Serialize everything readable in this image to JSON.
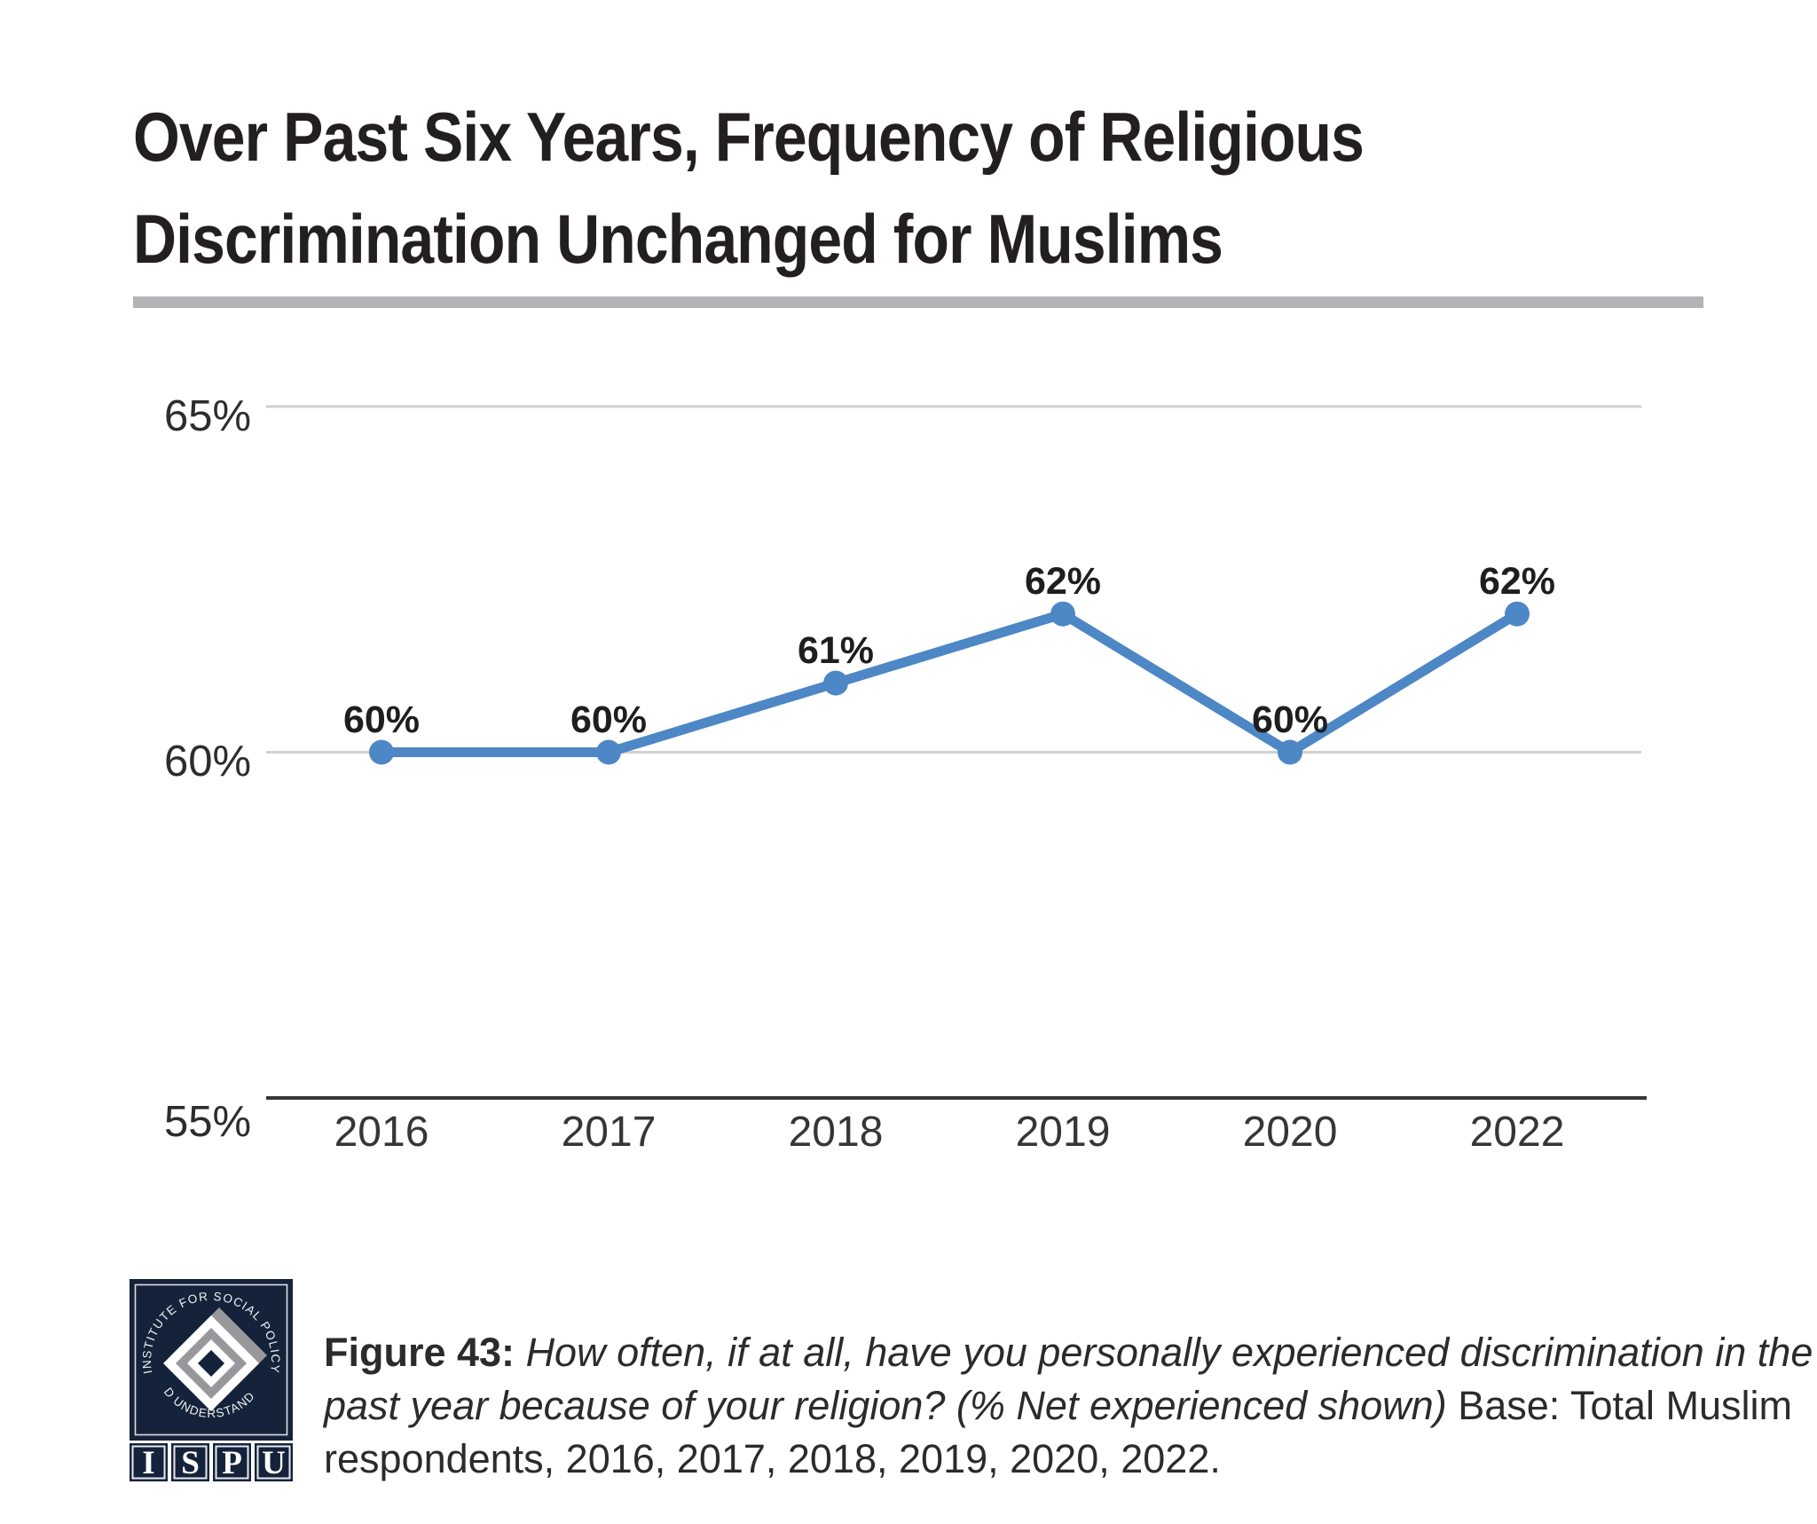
{
  "title": {
    "line1": "Over Past Six Years, Frequency of Religious",
    "line2": "Discrimination Unchanged for Muslims"
  },
  "chart_data": {
    "type": "line",
    "title": "Over Past Six Years, Frequency of Religious Discrimination Unchanged for Muslims",
    "categories": [
      "2016",
      "2017",
      "2018",
      "2019",
      "2020",
      "2022"
    ],
    "values": [
      60,
      60,
      61,
      62,
      60,
      62
    ],
    "data_labels": [
      "60%",
      "60%",
      "61%",
      "62%",
      "60%",
      "62%"
    ],
    "xlabel": "",
    "ylabel": "",
    "ylim": [
      55,
      65
    ],
    "y_ticks": [
      {
        "label": "65%",
        "value": 65,
        "axis": false
      },
      {
        "label": "60%",
        "value": 60,
        "axis": false
      },
      {
        "label": "55%",
        "value": 55,
        "axis": true
      }
    ],
    "grid": "horizontal",
    "legend": "none",
    "line_color": "#4d87c5",
    "marker": "circle"
  },
  "footer": {
    "logo": {
      "ring_top": "INSTITUTE FOR SOCIAL POLICY",
      "ring_bottom": "AND UNDERSTANDING",
      "letters": [
        "I",
        "S",
        "P",
        "U"
      ],
      "navy": "#15233a",
      "gray": "#98989c"
    },
    "caption": {
      "fig_label": "Figure 43:",
      "line1_italic": "How often, if at all, have you personally experienced discrimination in the",
      "line2_italic": "past year because of your religion? (% Net experienced shown)",
      "line2_regular": "Base: Total Muslim",
      "line3_regular": "respondents, 2016, 2017, 2018, 2019, 2020, 2022."
    }
  },
  "colors": {
    "line_blue": "#4d87c5",
    "gridline": "#d0d0d0",
    "axis_line": "#363636",
    "divider": "#b3b3b5",
    "title_text": "#231f20"
  }
}
